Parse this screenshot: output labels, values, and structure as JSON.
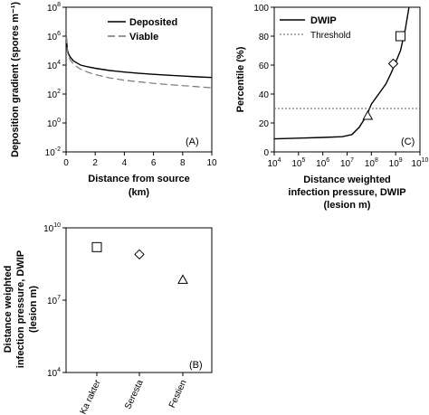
{
  "chart_data": [
    {
      "type": "line",
      "panel_label": "(A)",
      "xlabel_lines": [
        "Distance from source",
        "(km)"
      ],
      "ylabel": "Deposition gradient (spores m⁻¹)",
      "xlim": [
        0,
        10
      ],
      "ylim_log10": [
        -2,
        8
      ],
      "y_scale": "log",
      "x_ticks": [
        "0",
        "2",
        "4",
        "6",
        "8",
        "10"
      ],
      "y_ticks": [
        {
          "base": "10",
          "exp": "8"
        },
        {
          "base": "10",
          "exp": "6"
        },
        {
          "base": "10",
          "exp": "4"
        },
        {
          "base": "10",
          "exp": "2"
        },
        {
          "base": "10",
          "exp": "0"
        },
        {
          "base": "10",
          "exp": "-2"
        }
      ],
      "legend_position": "top-right",
      "series": [
        {
          "name": "Deposited",
          "style": "solid",
          "x": [
            0.02,
            0.05,
            0.1,
            0.2,
            0.3,
            0.5,
            0.75,
            1,
            1.5,
            2,
            3,
            4,
            5,
            6,
            7,
            8,
            9,
            10
          ],
          "y": [
            1000000,
            300000,
            100000,
            50000,
            35000,
            20000,
            14000,
            10000,
            7500,
            6000,
            4200,
            3300,
            2700,
            2300,
            2000,
            1750,
            1550,
            1400
          ]
        },
        {
          "name": "Viable",
          "style": "dashed",
          "x": [
            0.02,
            0.05,
            0.1,
            0.2,
            0.3,
            0.5,
            0.75,
            1,
            1.5,
            2,
            3,
            4,
            5,
            6,
            7,
            8,
            9,
            10
          ],
          "y": [
            1000000,
            250000,
            80000,
            35000,
            22000,
            12000,
            7500,
            5200,
            3200,
            2200,
            1300,
            900,
            700,
            550,
            450,
            380,
            320,
            270
          ]
        }
      ]
    },
    {
      "type": "line",
      "panel_label": "(C)",
      "xlabel_lines": [
        "Distance weighted",
        "infection pressure, DWIP",
        "(lesion m)"
      ],
      "ylabel": "Percentile (%)",
      "x_scale": "log",
      "xlim_log10": [
        4,
        10
      ],
      "ylim": [
        0,
        100
      ],
      "x_ticks": [
        {
          "base": "10",
          "exp": "4"
        },
        {
          "base": "10",
          "exp": "5"
        },
        {
          "base": "10",
          "exp": "6"
        },
        {
          "base": "10",
          "exp": "7"
        },
        {
          "base": "10",
          "exp": "8"
        },
        {
          "base": "10",
          "exp": "9"
        },
        {
          "base": "10",
          "exp": "10"
        }
      ],
      "y_ticks": [
        "0",
        "20",
        "40",
        "60",
        "80",
        "100"
      ],
      "legend_position": "top-left",
      "series": [
        {
          "name": "DWIP",
          "style": "solid",
          "x_log10": [
            4,
            5,
            6,
            6.8,
            7.2,
            7.5,
            7.8,
            8.0,
            8.3,
            8.6,
            8.8,
            9.0,
            9.2,
            9.4,
            9.55
          ],
          "y": [
            9,
            9.5,
            10,
            10.5,
            12,
            17,
            25,
            33,
            40,
            47,
            54,
            62,
            70,
            85,
            100
          ]
        },
        {
          "name": "Threshold",
          "style": "dotted",
          "x_log10": [
            4,
            10
          ],
          "y": [
            30,
            30
          ]
        }
      ],
      "markers": [
        {
          "shape": "triangle",
          "x_log10": 7.85,
          "y": 25
        },
        {
          "shape": "diamond",
          "x_log10": 8.9,
          "y": 61
        },
        {
          "shape": "square",
          "x_log10": 9.2,
          "y": 80
        }
      ]
    },
    {
      "type": "scatter",
      "panel_label": "(B)",
      "ylabel_lines": [
        "Distance weighted",
        "infection pressure, DWIP",
        "(lesion m)"
      ],
      "y_scale": "log",
      "ylim_log10": [
        4,
        10
      ],
      "y_ticks": [
        {
          "base": "10",
          "exp": "10"
        },
        {
          "base": "10",
          "exp": "7"
        },
        {
          "base": "10",
          "exp": "4"
        }
      ],
      "categories": [
        "Ka rakter",
        "Seresta",
        "Festien"
      ],
      "points": [
        {
          "category": "Ka rakter",
          "shape": "square",
          "y_log10": 9.2
        },
        {
          "category": "Seresta",
          "shape": "diamond",
          "y_log10": 8.9
        },
        {
          "category": "Festien",
          "shape": "triangle",
          "y_log10": 7.85
        }
      ]
    }
  ]
}
